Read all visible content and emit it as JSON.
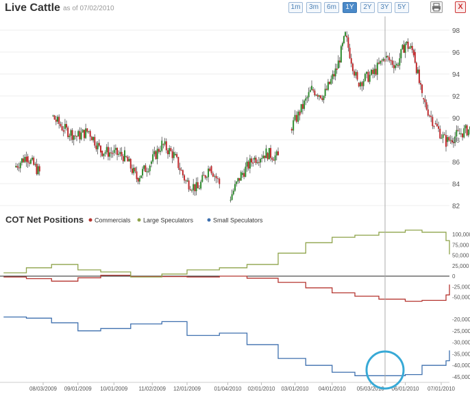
{
  "header": {
    "title": "Live Cattle",
    "as_of": "as of 07/02/2010",
    "range_buttons": [
      "1m",
      "3m",
      "6m",
      "1Y",
      "2Y",
      "3Y",
      "5Y"
    ],
    "active_range": "1Y",
    "close_label": "X"
  },
  "colors": {
    "up_candle": "#2e8b2e",
    "down_candle": "#c0282c",
    "commercials": "#b5342f",
    "large_speculators": "#8ea34a",
    "small_speculators": "#3d6fae",
    "highlight_circle": "#37a9d6",
    "crosshair": "#999999"
  },
  "chart_data": [
    {
      "type": "candlestick",
      "title": "Live Cattle",
      "ylim": [
        81,
        99
      ],
      "y_ticks": [
        "98",
        "96",
        "94",
        "92",
        "90",
        "88",
        "86",
        "84",
        "82"
      ],
      "series": [
        {
          "points": [
            [
              "2009-07-10",
              85.5
            ],
            [
              "2009-07-20",
              86.5
            ],
            [
              "2009-07-31",
              85.0
            ],
            [
              "2009-08-10",
              90.2
            ],
            [
              "2009-08-20",
              89.0
            ],
            [
              "2009-08-31",
              88.3
            ],
            [
              "2009-09-10",
              88.8
            ],
            [
              "2009-09-20",
              87.0
            ],
            [
              "2009-09-30",
              86.8
            ],
            [
              "2009-10-10",
              86.5
            ],
            [
              "2009-10-20",
              84.5
            ],
            [
              "2009-10-31",
              85.8
            ],
            [
              "2009-11-10",
              87.6
            ],
            [
              "2009-11-20",
              86.6
            ],
            [
              "2009-11-30",
              84.2
            ],
            [
              "2009-12-10",
              83.5
            ],
            [
              "2009-12-20",
              85.6
            ],
            [
              "2009-12-28",
              84.0
            ],
            [
              "2010-01-05",
              82.5
            ],
            [
              "2010-01-15",
              84.8
            ],
            [
              "2010-01-25",
              86.2
            ],
            [
              "2010-02-05",
              86.8
            ],
            [
              "2010-02-15",
              86.4
            ],
            [
              "2010-02-25",
              89.0
            ],
            [
              "2010-03-05",
              90.5
            ],
            [
              "2010-03-15",
              92.6
            ],
            [
              "2010-03-25",
              92.0
            ],
            [
              "2010-04-05",
              94.5
            ],
            [
              "2010-04-12",
              97.5
            ],
            [
              "2010-04-22",
              93.2
            ],
            [
              "2010-05-05",
              94.0
            ],
            [
              "2010-05-15",
              95.5
            ],
            [
              "2010-05-25",
              94.8
            ],
            [
              "2010-06-01",
              96.8
            ],
            [
              "2010-06-08",
              96.0
            ],
            [
              "2010-06-15",
              91.8
            ],
            [
              "2010-06-25",
              89.5
            ],
            [
              "2010-07-05",
              87.8
            ],
            [
              "2010-07-15",
              88.5
            ],
            [
              "2010-07-25",
              89.0
            ],
            [
              "2010-08-02",
              90.2
            ]
          ]
        }
      ]
    },
    {
      "type": "line",
      "title": "COT Net Positions",
      "series": [
        {
          "name": "Commercials",
          "points": [
            [
              "2009-07-01",
              -2000
            ],
            [
              "2009-07-20",
              -6000
            ],
            [
              "2009-08-10",
              -12000
            ],
            [
              "2009-09-01",
              -4000
            ],
            [
              "2009-09-20",
              2000
            ],
            [
              "2009-10-15",
              -1000
            ],
            [
              "2009-11-10",
              -1000
            ],
            [
              "2009-12-01",
              -2000
            ],
            [
              "2009-12-28",
              0
            ],
            [
              "2010-01-20",
              -5000
            ],
            [
              "2010-02-15",
              -15000
            ],
            [
              "2010-03-10",
              -28000
            ],
            [
              "2010-04-01",
              -40000
            ],
            [
              "2010-04-20",
              -48000
            ],
            [
              "2010-05-10",
              -55000
            ],
            [
              "2010-06-01",
              -60000
            ],
            [
              "2010-06-15",
              -58000
            ],
            [
              "2010-07-05",
              -45000
            ],
            [
              "2010-07-25",
              -28000
            ],
            [
              "2010-08-05",
              -20000
            ]
          ]
        },
        {
          "name": "Large Speculators",
          "points": [
            [
              "2009-07-01",
              8000
            ],
            [
              "2009-07-20",
              20000
            ],
            [
              "2009-08-10",
              28000
            ],
            [
              "2009-09-01",
              15000
            ],
            [
              "2009-09-20",
              10000
            ],
            [
              "2009-10-15",
              -2000
            ],
            [
              "2009-11-10",
              5000
            ],
            [
              "2009-12-01",
              15000
            ],
            [
              "2009-12-28",
              20000
            ],
            [
              "2010-01-20",
              28000
            ],
            [
              "2010-02-15",
              55000
            ],
            [
              "2010-03-10",
              80000
            ],
            [
              "2010-04-01",
              93000
            ],
            [
              "2010-04-20",
              98000
            ],
            [
              "2010-05-10",
              105000
            ],
            [
              "2010-06-01",
              110000
            ],
            [
              "2010-06-15",
              105000
            ],
            [
              "2010-07-05",
              85000
            ],
            [
              "2010-07-25",
              60000
            ],
            [
              "2010-08-05",
              52000
            ]
          ]
        },
        {
          "name": "Small Speculators",
          "points": [
            [
              "2009-07-01",
              -19000
            ],
            [
              "2009-07-20",
              -19500
            ],
            [
              "2009-08-10",
              -21500
            ],
            [
              "2009-09-01",
              -25000
            ],
            [
              "2009-09-20",
              -24000
            ],
            [
              "2009-10-15",
              -22000
            ],
            [
              "2009-11-10",
              -21000
            ],
            [
              "2009-12-01",
              -27000
            ],
            [
              "2009-12-28",
              -26000
            ],
            [
              "2010-01-20",
              -31000
            ],
            [
              "2010-02-15",
              -37000
            ],
            [
              "2010-03-10",
              -40000
            ],
            [
              "2010-04-01",
              -43000
            ],
            [
              "2010-04-20",
              -44500
            ],
            [
              "2010-05-10",
              -44500
            ],
            [
              "2010-06-01",
              -44000
            ],
            [
              "2010-06-15",
              -40000
            ],
            [
              "2010-07-05",
              -38000
            ],
            [
              "2010-07-25",
              -34000
            ],
            [
              "2010-08-05",
              -33500
            ]
          ]
        }
      ],
      "right_axis_ticks_top": [
        "100,000",
        "75,000",
        "50,000",
        "25,000",
        "0",
        "-25,000",
        "-50,000"
      ],
      "right_axis_ticks_bottom": [
        "-20,000",
        "-25,000",
        "-30,000",
        "-35,000",
        "-40,000",
        "-45,000"
      ],
      "x_ticks": [
        "08/03/2009",
        "09/01/2009",
        "10/01/2009",
        "11/02/2009",
        "12/01/2009",
        "01/04/2010",
        "02/01/2010",
        "03/01/2010",
        "04/01/2010",
        "05/03/2010",
        "06/01/2010",
        "07/01/2010"
      ]
    }
  ]
}
